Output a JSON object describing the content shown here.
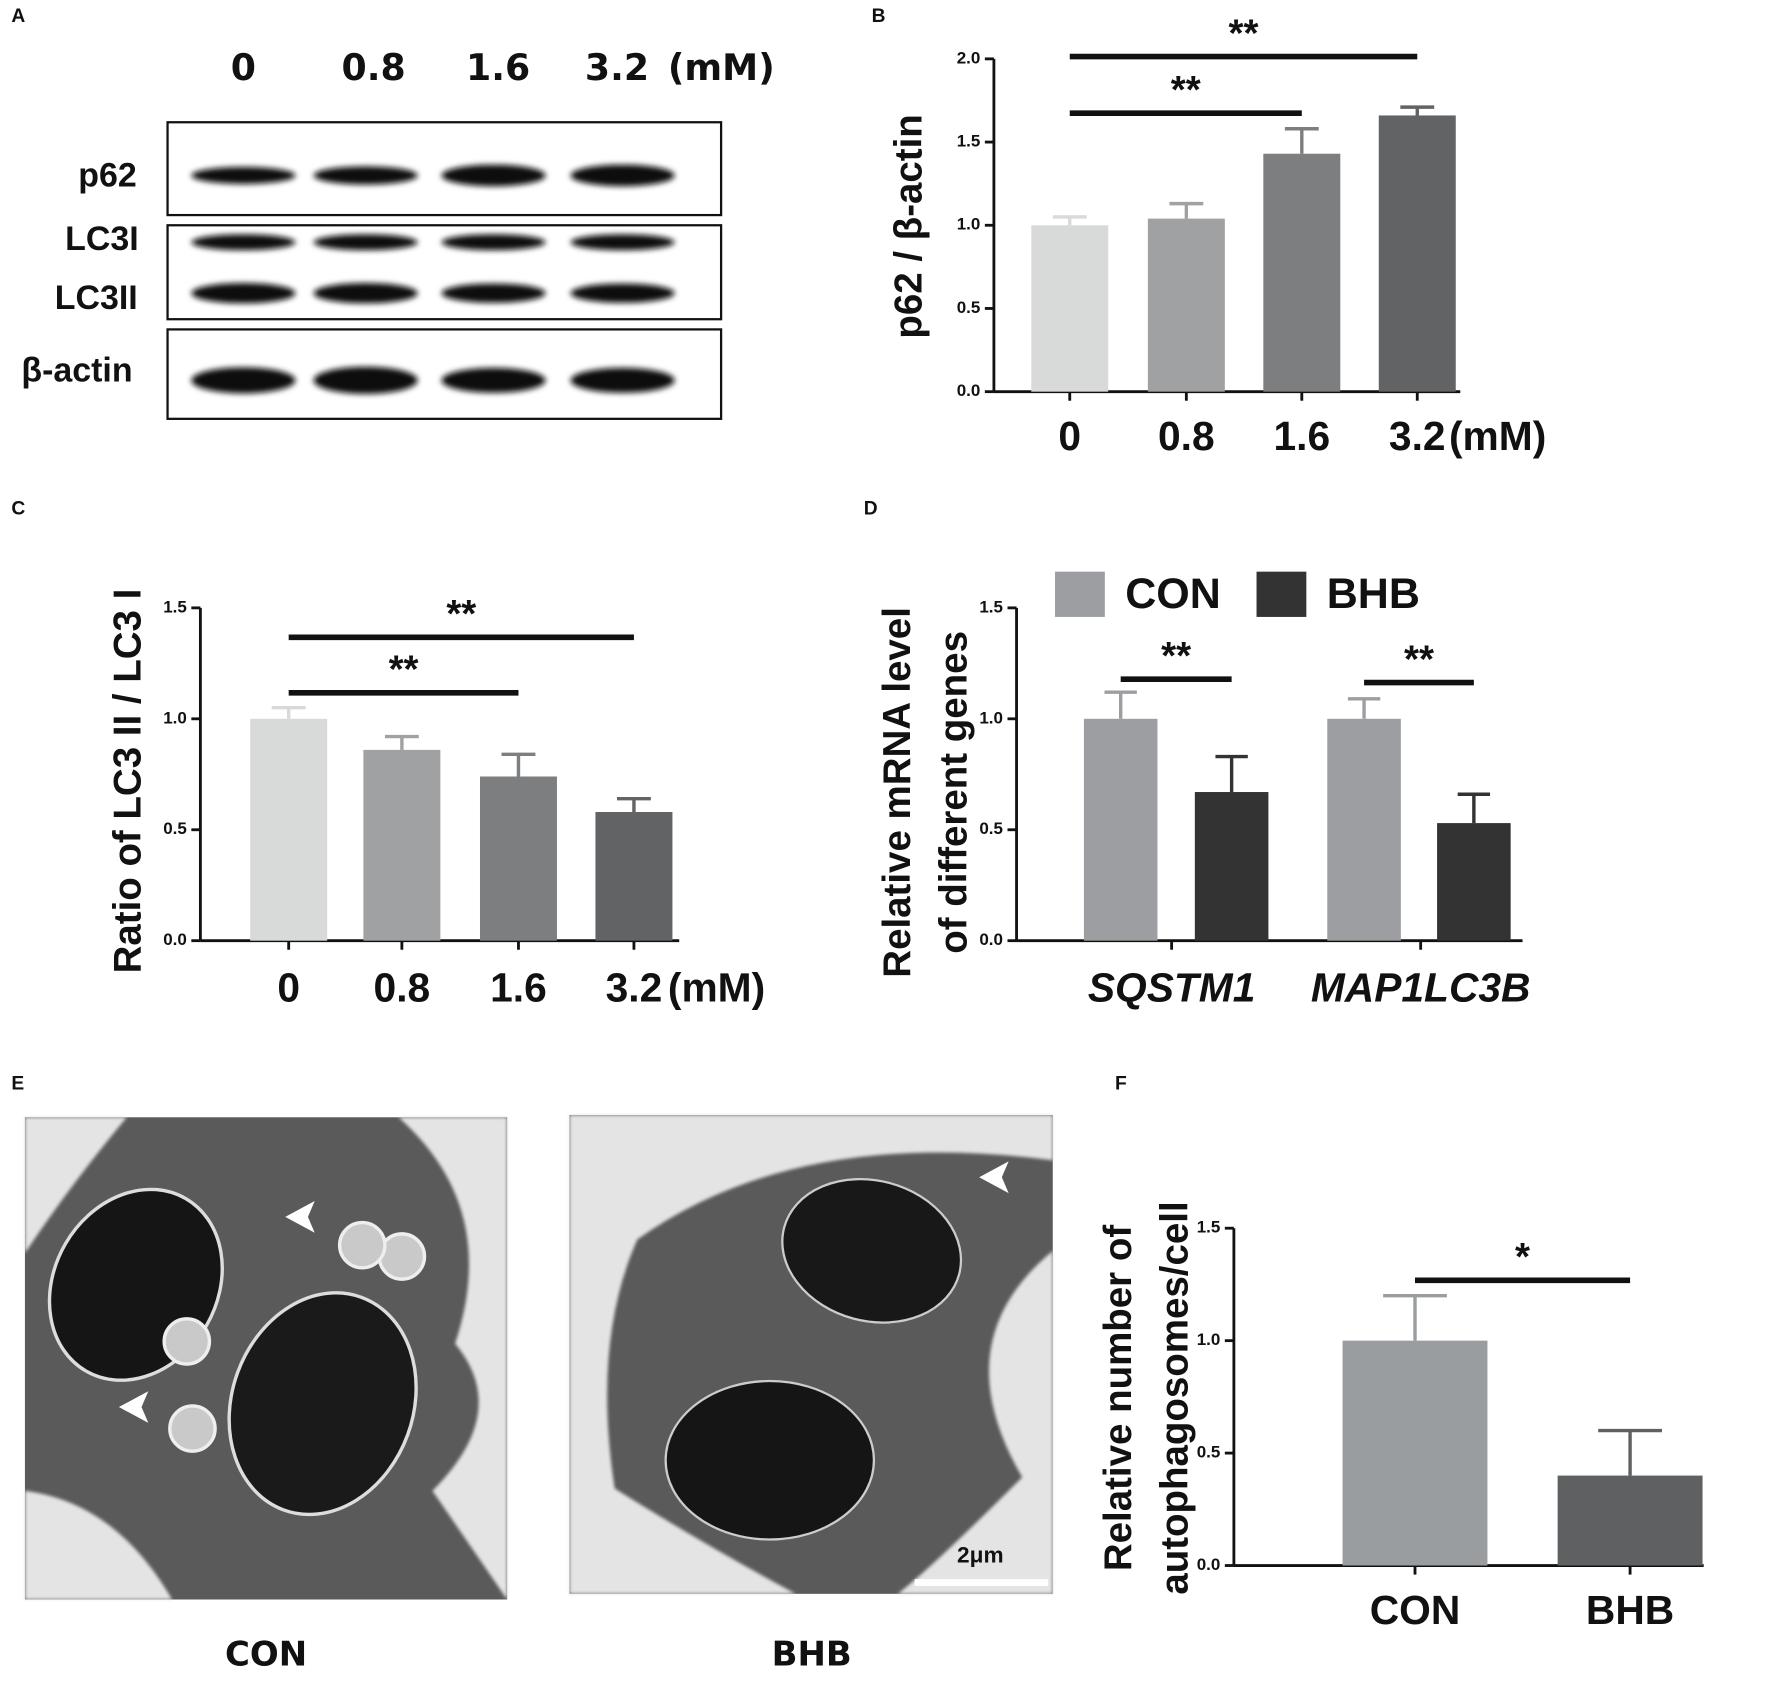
{
  "blot": {
    "panel": "A",
    "lanes": [
      "0",
      "0.8",
      "1.6",
      "3.2"
    ],
    "unit": "(mM)",
    "rows": [
      "p62",
      "LC3I",
      "LC3II",
      "β-actin"
    ]
  },
  "micrographs": {
    "panel": "E",
    "labels": [
      "CON",
      "BHB"
    ],
    "scale_bar": "2μm"
  },
  "chart_data": [
    {
      "type": "bar",
      "panel": "B",
      "ylabel": "p62 / β-actin",
      "unit": "(mM)",
      "categories": [
        "0",
        "0.8",
        "1.6",
        "3.2"
      ],
      "values": [
        1.0,
        1.04,
        1.43,
        1.66
      ],
      "errors": [
        0.05,
        0.09,
        0.15,
        0.05
      ],
      "colors": [
        "#d8d9d9",
        "#a0a1a3",
        "#7d7e80",
        "#626364"
      ],
      "ylim": [
        0,
        2
      ],
      "yticks": [
        {
          "value": 0,
          "label": "0.0"
        },
        {
          "value": 0.5,
          "label": "0.5"
        },
        {
          "value": 1,
          "label": "1.0"
        },
        {
          "value": 1.5,
          "label": "1.5"
        },
        {
          "value": 2,
          "label": "2.0"
        }
      ],
      "grid": false,
      "significance": [
        {
          "pair": [
            0,
            2
          ],
          "label": "**"
        },
        {
          "pair": [
            0,
            3
          ],
          "label": "**"
        }
      ]
    },
    {
      "type": "bar",
      "panel": "C",
      "ylabel": "Ratio of LC3 II / LC3 I",
      "unit": "(mM)",
      "categories": [
        "0",
        "0.8",
        "1.6",
        "3.2"
      ],
      "values": [
        1.0,
        0.86,
        0.74,
        0.58
      ],
      "errors": [
        0.05,
        0.06,
        0.1,
        0.06
      ],
      "colors": [
        "#d8d9d9",
        "#a0a1a3",
        "#7d7e80",
        "#626364"
      ],
      "ylim": [
        0,
        1.5
      ],
      "yticks": [
        {
          "value": 0,
          "label": "0.0"
        },
        {
          "value": 0.5,
          "label": "0.5"
        },
        {
          "value": 1,
          "label": "1.0"
        },
        {
          "value": 1.5,
          "label": "1.5"
        }
      ],
      "grid": false,
      "significance": [
        {
          "pair": [
            0,
            2
          ],
          "label": "**"
        },
        {
          "pair": [
            0,
            3
          ],
          "label": "**"
        }
      ]
    },
    {
      "type": "grouped-bar",
      "panel": "D",
      "ylabel": [
        "Relative mRNA level",
        "of different genes"
      ],
      "categories": [
        "SQSTM1",
        "MAP1LC3B"
      ],
      "series": [
        {
          "name": "CON",
          "color": "#9c9ea1",
          "values": [
            1.0,
            1.0
          ],
          "errors": [
            0.12,
            0.09
          ]
        },
        {
          "name": "BHB",
          "color": "#333333",
          "values": [
            0.67,
            0.53
          ],
          "errors": [
            0.16,
            0.13
          ]
        }
      ],
      "ylim": [
        0,
        1.5
      ],
      "yticks": [
        {
          "value": 0,
          "label": "0.0"
        },
        {
          "value": 0.5,
          "label": "0.5"
        },
        {
          "value": 1,
          "label": "1.0"
        },
        {
          "value": 1.5,
          "label": "1.5"
        }
      ],
      "grid": false,
      "legend": "top",
      "significance": [
        {
          "category": 0,
          "label": "**"
        },
        {
          "category": 1,
          "label": "**"
        }
      ]
    },
    {
      "type": "bar",
      "panel": "F",
      "ylabel": [
        "Relative number of",
        "autophagosomes/cell"
      ],
      "categories": [
        "CON",
        "BHB"
      ],
      "values": [
        1.0,
        0.4
      ],
      "errors": [
        0.2,
        0.2
      ],
      "colors": [
        "#9a9da0",
        "#5f6062"
      ],
      "ylim": [
        0,
        1.5
      ],
      "yticks": [
        {
          "value": 0,
          "label": "0.0"
        },
        {
          "value": 0.5,
          "label": "0.5"
        },
        {
          "value": 1,
          "label": "1.0"
        },
        {
          "value": 1.5,
          "label": "1.5"
        }
      ],
      "grid": false,
      "significance": [
        {
          "pair": [
            0,
            1
          ],
          "label": "*"
        }
      ]
    }
  ]
}
